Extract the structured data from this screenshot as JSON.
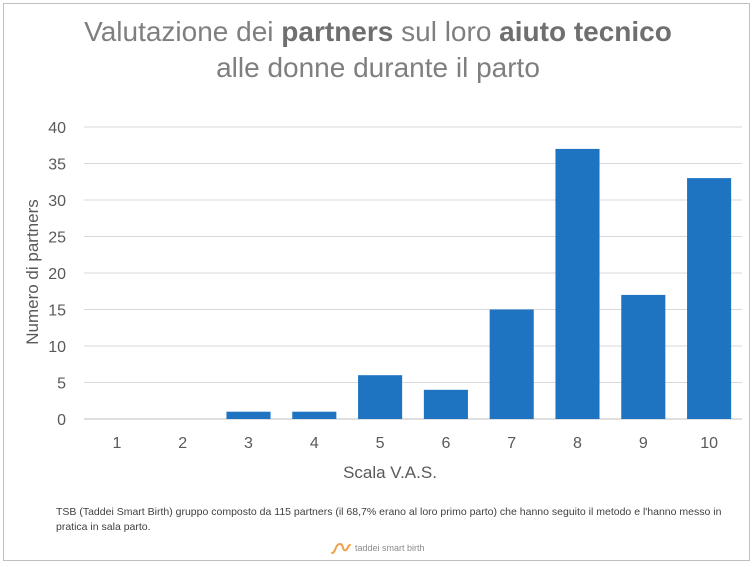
{
  "title": {
    "line1_a": "Valutazione dei ",
    "line1_b": "partners",
    "line1_c": " sul loro ",
    "line1_d": "aiuto tecnico",
    "line2": "alle donne durante il parto"
  },
  "chart_data": {
    "type": "bar",
    "categories": [
      "1",
      "2",
      "3",
      "4",
      "5",
      "6",
      "7",
      "8",
      "9",
      "10"
    ],
    "values": [
      0,
      0,
      1,
      1,
      6,
      4,
      15,
      37,
      17,
      33
    ],
    "xlabel": "Scala V.A.S.",
    "ylabel": "Numero di partners",
    "ylim": [
      0,
      40
    ],
    "yticks": [
      0,
      5,
      10,
      15,
      20,
      25,
      30,
      35,
      40
    ],
    "grid": true,
    "bar_color": "#1f74c2",
    "grid_color": "#d9d9d9",
    "axis_text_color": "#595959"
  },
  "footnote": "TSB (Taddei Smart Birth) gruppo composto da 115 partners (il 68,7% erano al loro primo parto) che hanno seguito il metodo e l'hanno messo in pratica in sala parto.",
  "logo": {
    "text": "taddei smart birth",
    "color": "#f0a04b"
  }
}
